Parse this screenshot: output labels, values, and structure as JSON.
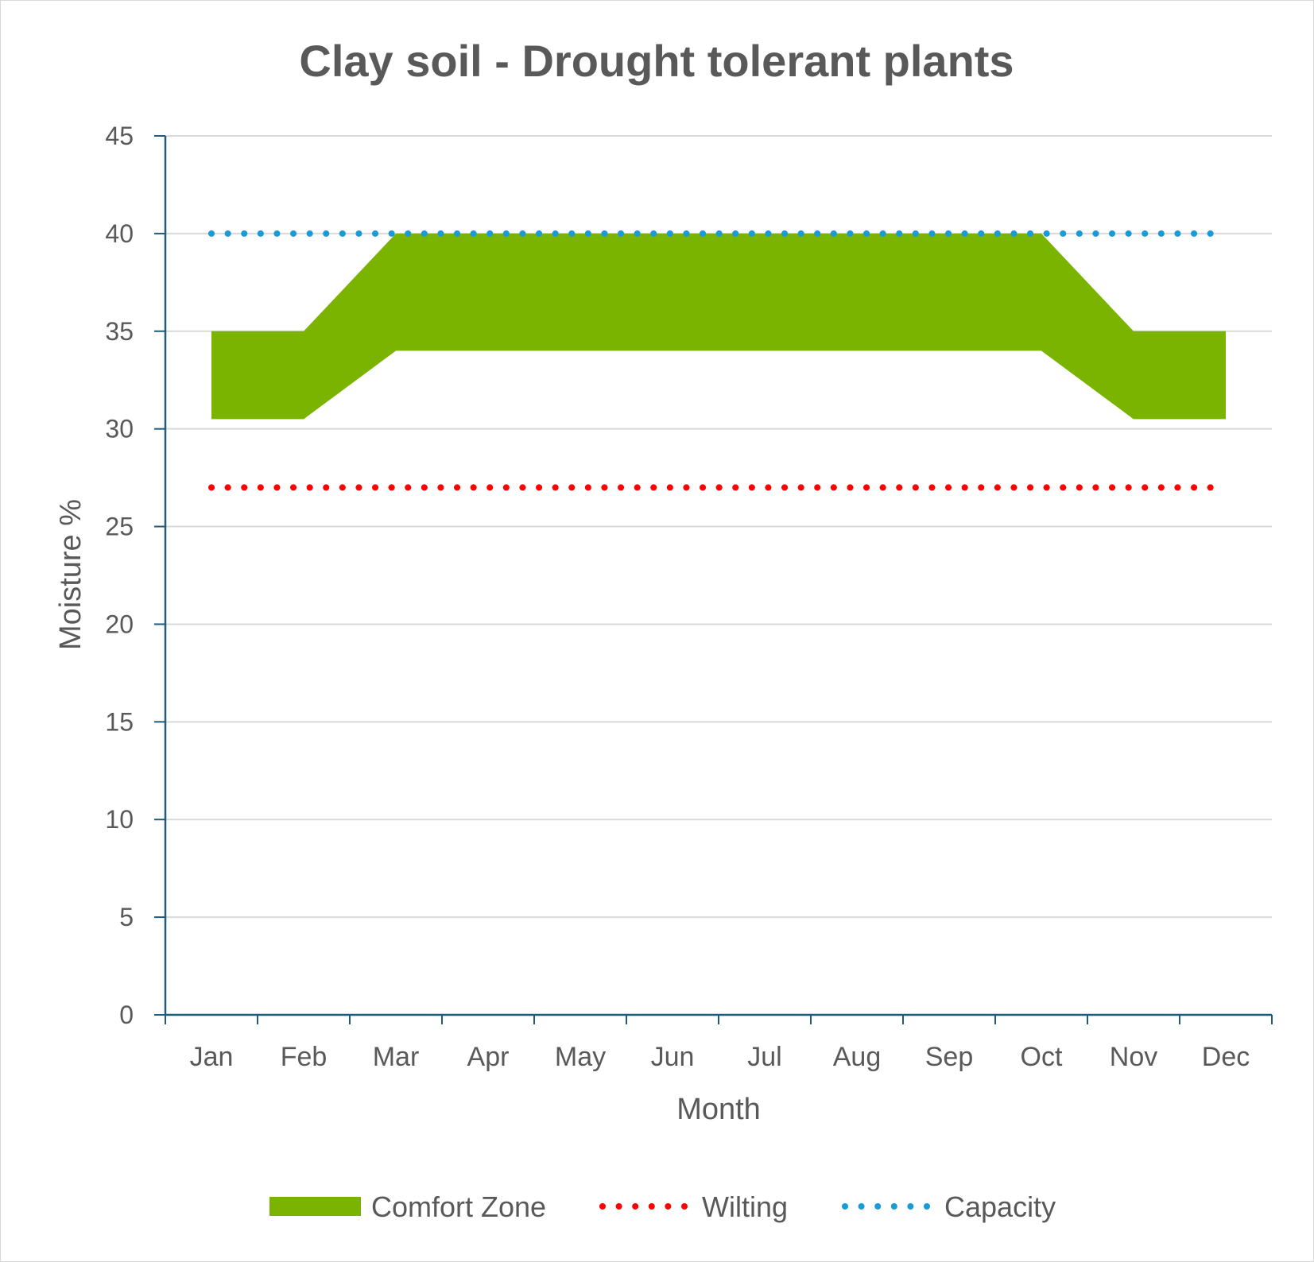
{
  "chart_data": {
    "type": "area",
    "title": "Clay soil - Drought tolerant plants",
    "xlabel": "Month",
    "ylabel": "Moisture %",
    "categories": [
      "Jan",
      "Feb",
      "Mar",
      "Apr",
      "May",
      "Jun",
      "Jul",
      "Aug",
      "Sep",
      "Oct",
      "Nov",
      "Dec"
    ],
    "ylim": [
      0,
      45
    ],
    "yticks": [
      0,
      5,
      10,
      15,
      20,
      25,
      30,
      35,
      40,
      45
    ],
    "grid": true,
    "legend_position": "bottom",
    "series": [
      {
        "name": "Comfort Zone",
        "kind": "band",
        "lower": [
          30.5,
          30.5,
          34,
          34,
          34,
          34,
          34,
          34,
          34,
          34,
          30.5,
          30.5
        ],
        "upper": [
          35,
          35,
          40,
          40,
          40,
          40,
          40,
          40,
          40,
          40,
          35,
          35
        ],
        "color": "#7ab400"
      },
      {
        "name": "Wilting",
        "kind": "dotted-line",
        "values": [
          27,
          27,
          27,
          27,
          27,
          27,
          27,
          27,
          27,
          27,
          27,
          27
        ],
        "color": "#ff0000"
      },
      {
        "name": "Capacity",
        "kind": "dotted-line",
        "values": [
          40,
          40,
          40,
          40,
          40,
          40,
          40,
          40,
          40,
          40,
          40,
          40
        ],
        "color": "#1a9ad6"
      }
    ],
    "colors": {
      "axis": "#1f5c7a",
      "gridline": "#d9d9d9",
      "text": "#595959"
    }
  }
}
